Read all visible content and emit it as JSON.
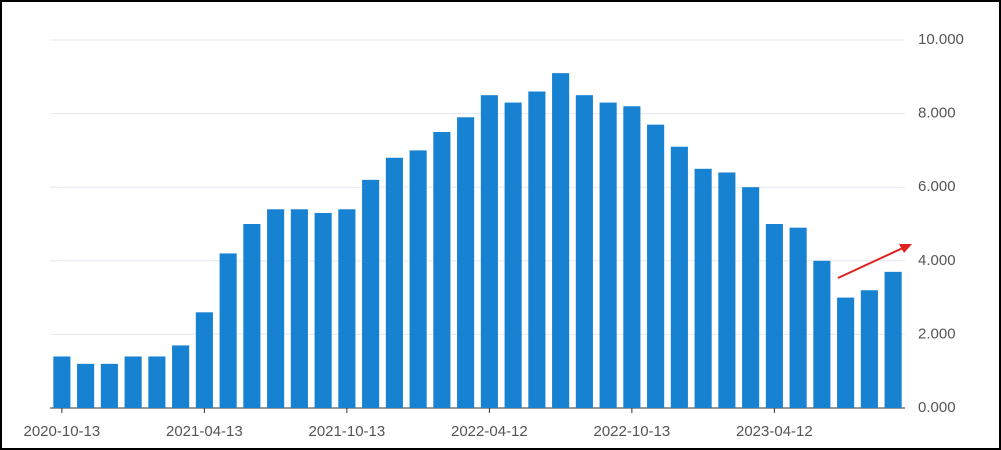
{
  "chart_data": {
    "type": "bar",
    "categories": [
      "2020-10-13",
      null,
      null,
      null,
      null,
      null,
      "2021-04-13",
      null,
      null,
      null,
      null,
      null,
      "2021-10-13",
      null,
      null,
      null,
      null,
      null,
      "2022-04-12",
      null,
      null,
      null,
      null,
      null,
      "2022-10-13",
      null,
      null,
      null,
      null,
      null,
      "2023-04-12",
      null,
      null,
      null,
      null,
      null
    ],
    "values": [
      1.4,
      1.2,
      1.2,
      1.4,
      1.4,
      1.7,
      2.6,
      4.2,
      5.0,
      5.4,
      5.4,
      5.3,
      5.4,
      6.2,
      6.8,
      7.0,
      7.5,
      7.9,
      8.5,
      8.3,
      8.6,
      9.1,
      8.5,
      8.3,
      8.2,
      7.7,
      7.1,
      6.5,
      6.4,
      6.0,
      5.0,
      4.9,
      4.0,
      3.0,
      3.2,
      3.7
    ],
    "color": "#1781d2",
    "ylim": [
      0,
      10
    ],
    "yticks": [
      {
        "value": 0,
        "label": "0.000"
      },
      {
        "value": 2,
        "label": "2.000"
      },
      {
        "value": 4,
        "label": "4.000"
      },
      {
        "value": 6,
        "label": "6.000"
      },
      {
        "value": 8,
        "label": "8.000"
      },
      {
        "value": 10,
        "label": "10.000"
      }
    ],
    "grid": true
  }
}
